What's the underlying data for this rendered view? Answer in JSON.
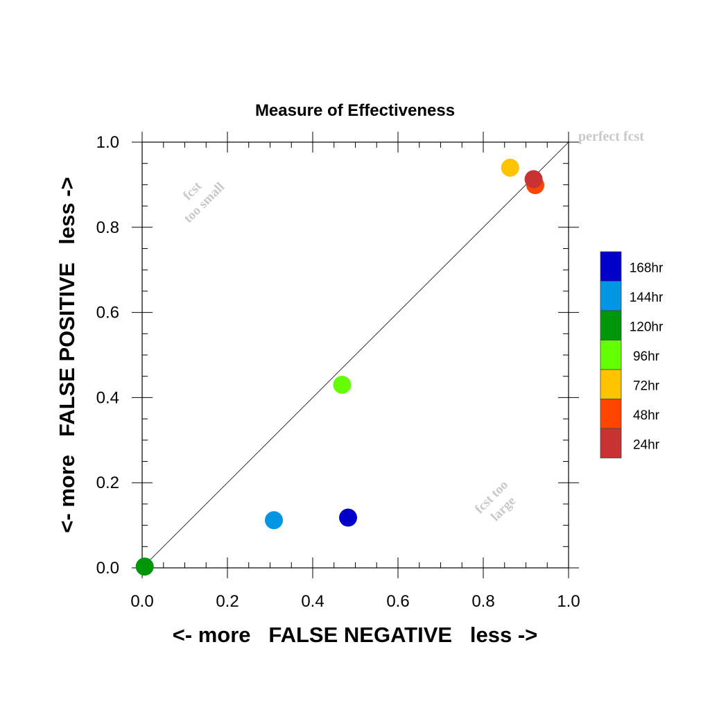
{
  "chart_data": {
    "type": "scatter",
    "title": "Measure of Effectiveness",
    "xlabel": "<- more   FALSE NEGATIVE   less ->",
    "ylabel": "<- more   FALSE POSITIVE   less ->",
    "xlim": [
      0,
      1
    ],
    "ylim": [
      0,
      1
    ],
    "x_ticks": [
      "0.0",
      "0.2",
      "0.4",
      "0.6",
      "0.8",
      "1.0"
    ],
    "y_ticks": [
      "0.0",
      "0.2",
      "0.4",
      "0.6",
      "0.8",
      "1.0"
    ],
    "grid": false,
    "diagonal_line": true,
    "annotations": {
      "perfect": "perfect fcst",
      "too_small_1": "fcst",
      "too_small_2": "too small",
      "too_large_1": "fcst too",
      "too_large_2": "large"
    },
    "legend_position": "right",
    "series": [
      {
        "name": "168hr",
        "color": "#0000c8",
        "x": 0.483,
        "y": 0.118
      },
      {
        "name": "144hr",
        "color": "#0096e1",
        "x": 0.309,
        "y": 0.112
      },
      {
        "name": "120hr",
        "color": "#00960a",
        "x": 0.006,
        "y": 0.003
      },
      {
        "name": "96hr",
        "color": "#64ff00",
        "x": 0.469,
        "y": 0.43
      },
      {
        "name": "72hr",
        "color": "#ffc300",
        "x": 0.863,
        "y": 0.94
      },
      {
        "name": "48hr",
        "color": "#ff4600",
        "x": 0.922,
        "y": 0.899
      },
      {
        "name": "24hr",
        "color": "#c83232",
        "x": 0.918,
        "y": 0.913
      }
    ]
  }
}
